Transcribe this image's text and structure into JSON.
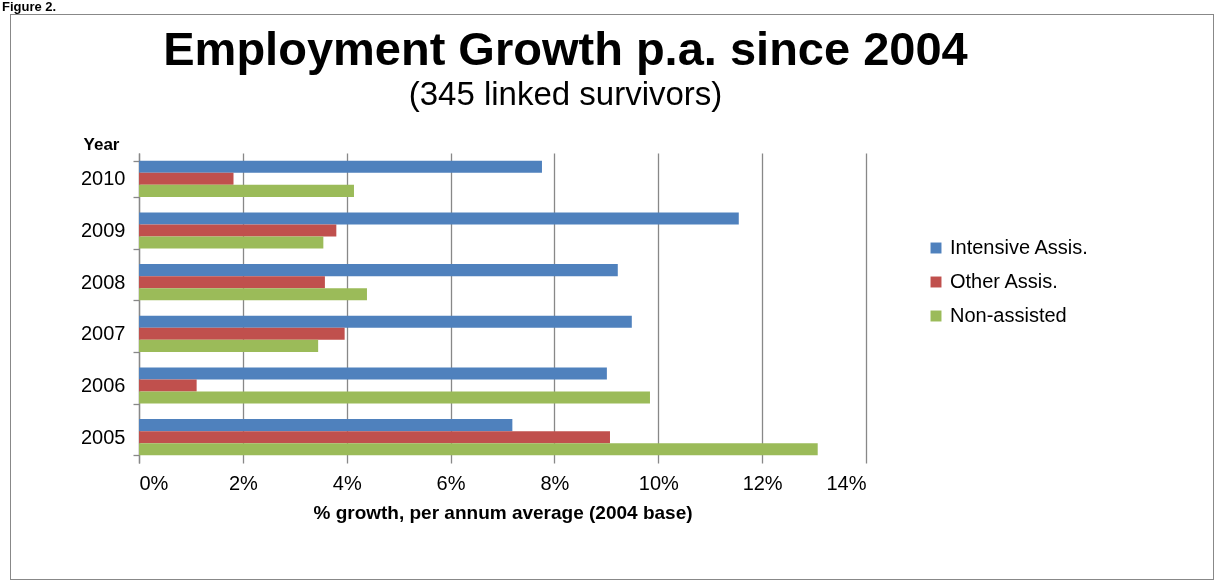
{
  "chart_data": {
    "type": "bar",
    "orientation": "horizontal",
    "title": "Employment Growth p.a. since 2004",
    "subtitle": "(345 linked survivors)",
    "xlabel": "% growth, per annum average (2004 base)",
    "ylabel": "Year",
    "annotations": [
      "Figure 2."
    ],
    "categories": [
      "2010",
      "2009",
      "2008",
      "2007",
      "2006",
      "2005"
    ],
    "series": [
      {
        "name": "Intensive Assis.",
        "color": "#4f81bd",
        "values": [
          7.76,
          11.55,
          9.22,
          9.49,
          9.01,
          7.19
        ]
      },
      {
        "name": "Other Assis.",
        "color": "#c0504d",
        "values": [
          1.82,
          3.8,
          3.58,
          3.96,
          1.11,
          9.07
        ]
      },
      {
        "name": "Non-assisted",
        "color": "#9bbb59",
        "values": [
          4.14,
          3.55,
          4.39,
          3.45,
          9.84,
          13.07
        ]
      }
    ],
    "xlim": [
      0,
      14
    ],
    "xticks": [
      {
        "value": 0,
        "label": "0%"
      },
      {
        "value": 2,
        "label": "2%"
      },
      {
        "value": 4,
        "label": "4%"
      },
      {
        "value": 6,
        "label": "6%"
      },
      {
        "value": 8,
        "label": "8%"
      },
      {
        "value": 10,
        "label": "10%"
      },
      {
        "value": 12,
        "label": "12%"
      },
      {
        "value": 14,
        "label": "14%"
      }
    ],
    "grid": "x",
    "legend": "right"
  }
}
